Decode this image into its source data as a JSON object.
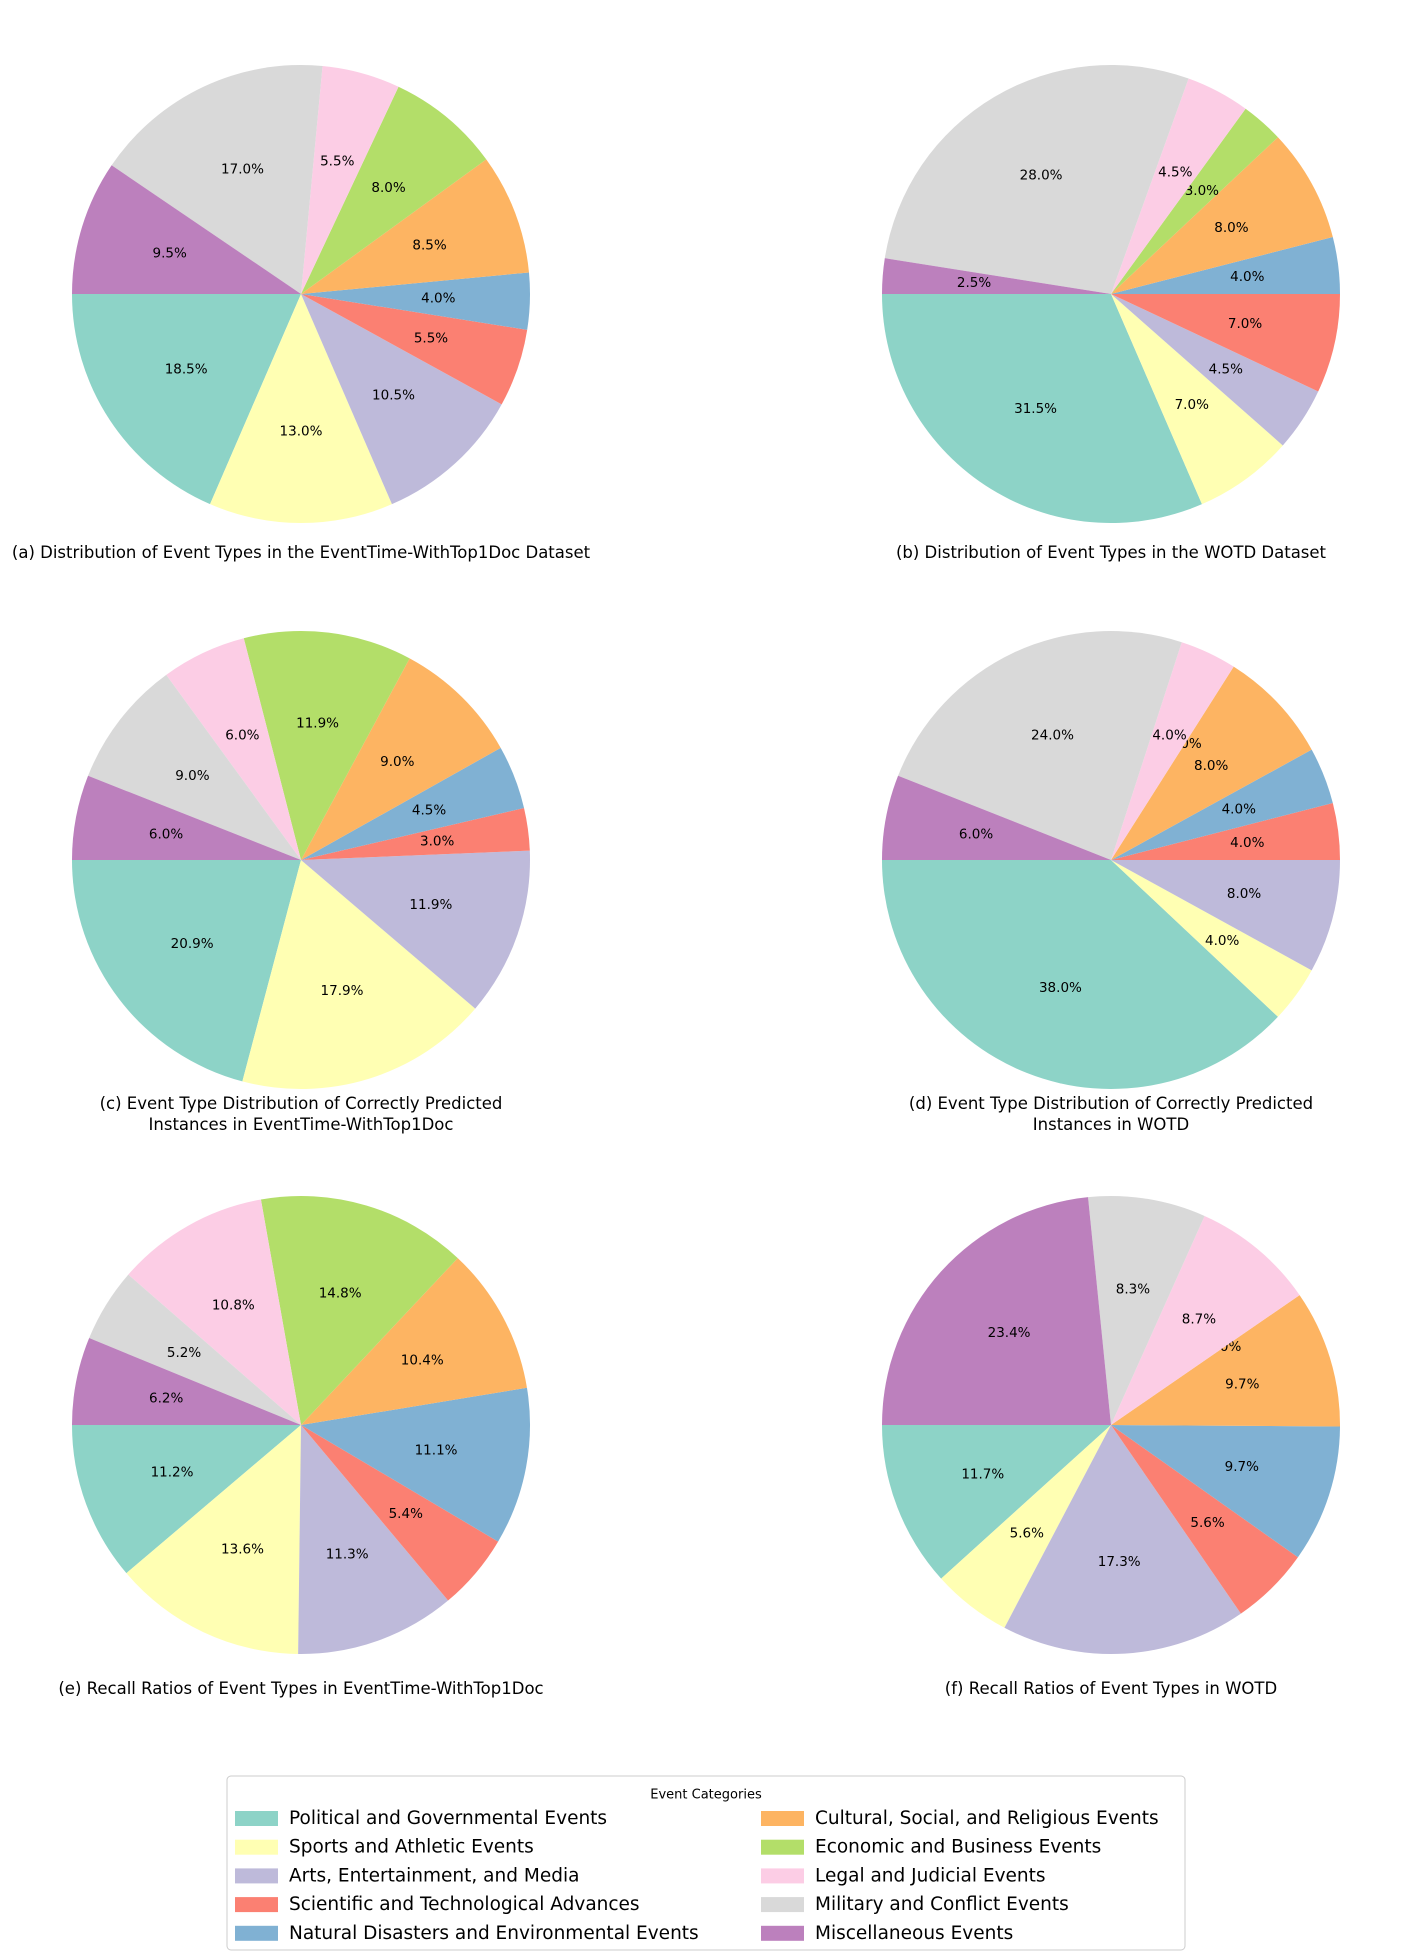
{
  "categories": [
    "Political and Governmental Events",
    "Sports and Athletic Events",
    "Arts, Entertainment, and Media",
    "Scientific and Technological Advances",
    "Natural Disasters and Environmental Events",
    "Cultural, Social, and Religious Events",
    "Economic and Business Events",
    "Legal and Judicial Events",
    "Military and Conflict Events",
    "Miscellaneous Events"
  ],
  "colors": [
    "#8dd3c7",
    "#ffffb3",
    "#bebada",
    "#fb8072",
    "#80b1d3",
    "#fdb462",
    "#b3de69",
    "#fccde5",
    "#d9d9d9",
    "#bc80bd"
  ],
  "legend": {
    "title": "Event Categories"
  },
  "chart_data": [
    {
      "type": "pie",
      "caption": [
        "(a) Distribution of Event Types in the EventTime-WithTop1Doc Dataset"
      ],
      "values": [
        18.5,
        13.0,
        10.5,
        5.5,
        4.0,
        8.5,
        8.0,
        5.5,
        17.0,
        9.5
      ],
      "labels": [
        "18.5%",
        "13.0%",
        "10.5%",
        "5.5%",
        "4.0%",
        "8.5%",
        "8.0%",
        "5.5%",
        "17.0%",
        "9.5%"
      ]
    },
    {
      "type": "pie",
      "caption": [
        "(b) Distribution of Event Types in the WOTD Dataset"
      ],
      "values": [
        31.5,
        7.0,
        4.5,
        7.0,
        4.0,
        8.0,
        3.0,
        4.5,
        28.0,
        2.5
      ],
      "labels": [
        "31.5%",
        "7.0%",
        "4.5%",
        "7.0%",
        "4.0%",
        "8.0%",
        "3.0%",
        "4.5%",
        "28.0%",
        "2.5%"
      ]
    },
    {
      "type": "pie",
      "caption": [
        "(c) Event Type Distribution of Correctly Predicted",
        "Instances in EventTime-WithTop1Doc"
      ],
      "values": [
        20.9,
        17.9,
        11.9,
        3.0,
        4.5,
        9.0,
        11.9,
        6.0,
        9.0,
        6.0
      ],
      "labels": [
        "20.9%",
        "17.9%",
        "11.9%",
        "3.0%",
        "4.5%",
        "9.0%",
        "11.9%",
        "6.0%",
        "9.0%",
        "6.0%"
      ]
    },
    {
      "type": "pie",
      "caption": [
        "(d) Event Type Distribution of Correctly Predicted",
        "Instances in WOTD"
      ],
      "values": [
        38.0,
        4.0,
        8.0,
        4.0,
        4.0,
        8.0,
        0.0,
        4.0,
        24.0,
        6.0
      ],
      "labels": [
        "38.0%",
        "4.0%",
        "8.0%",
        "4.0%",
        "4.0%",
        "8.0%",
        "0.0%",
        "4.0%",
        "24.0%",
        "6.0%"
      ]
    },
    {
      "type": "pie",
      "caption": [
        "(e) Recall Ratios of Event Types in EventTime-WithTop1Doc"
      ],
      "values": [
        11.2,
        13.6,
        11.3,
        5.4,
        11.1,
        10.4,
        14.8,
        10.8,
        5.2,
        6.2
      ],
      "labels": [
        "11.2%",
        "13.6%",
        "11.3%",
        "5.4%",
        "11.1%",
        "10.4%",
        "14.8%",
        "10.8%",
        "5.2%",
        "6.2%"
      ]
    },
    {
      "type": "pie",
      "caption": [
        "(f) Recall Ratios of Event Types in WOTD"
      ],
      "values": [
        11.7,
        5.6,
        17.3,
        5.6,
        9.7,
        9.7,
        0.0,
        8.7,
        8.3,
        23.4
      ],
      "labels": [
        "11.7%",
        "5.6%",
        "17.3%",
        "5.6%",
        "9.7%",
        "9.7%",
        "0.0%",
        "8.7%",
        "8.3%",
        "23.4%"
      ]
    }
  ]
}
